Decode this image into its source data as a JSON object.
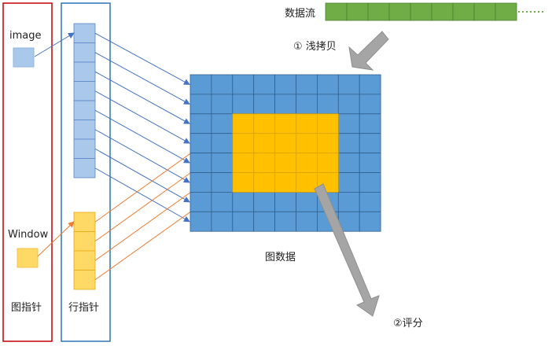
{
  "labels": {
    "image": "image",
    "window": "Window",
    "image_pointer": "图指针",
    "row_pointer": "行指针",
    "data_stream": "数据流",
    "shallow_copy": "① 浅拷贝",
    "image_data": "图数据",
    "scoring": "②评分"
  },
  "colors": {
    "image_blue": "#5b9bd5",
    "image_cell_light": "#a9c8ea",
    "window_yellow": "#ffc000",
    "window_cell_light": "#ffd966",
    "stream_green": "#70ad47",
    "red_border": "#c00000",
    "blue_border": "#2e75b6",
    "orange_arrow": "#ed7d31",
    "gray_arrow": "#a5a5a5"
  },
  "grid": {
    "rows": 8,
    "cols": 9,
    "window_rows": 4,
    "window_cols": 5
  },
  "row_pointers": {
    "image_count": 8,
    "window_count": 4
  },
  "stream": {
    "segments": 9
  }
}
